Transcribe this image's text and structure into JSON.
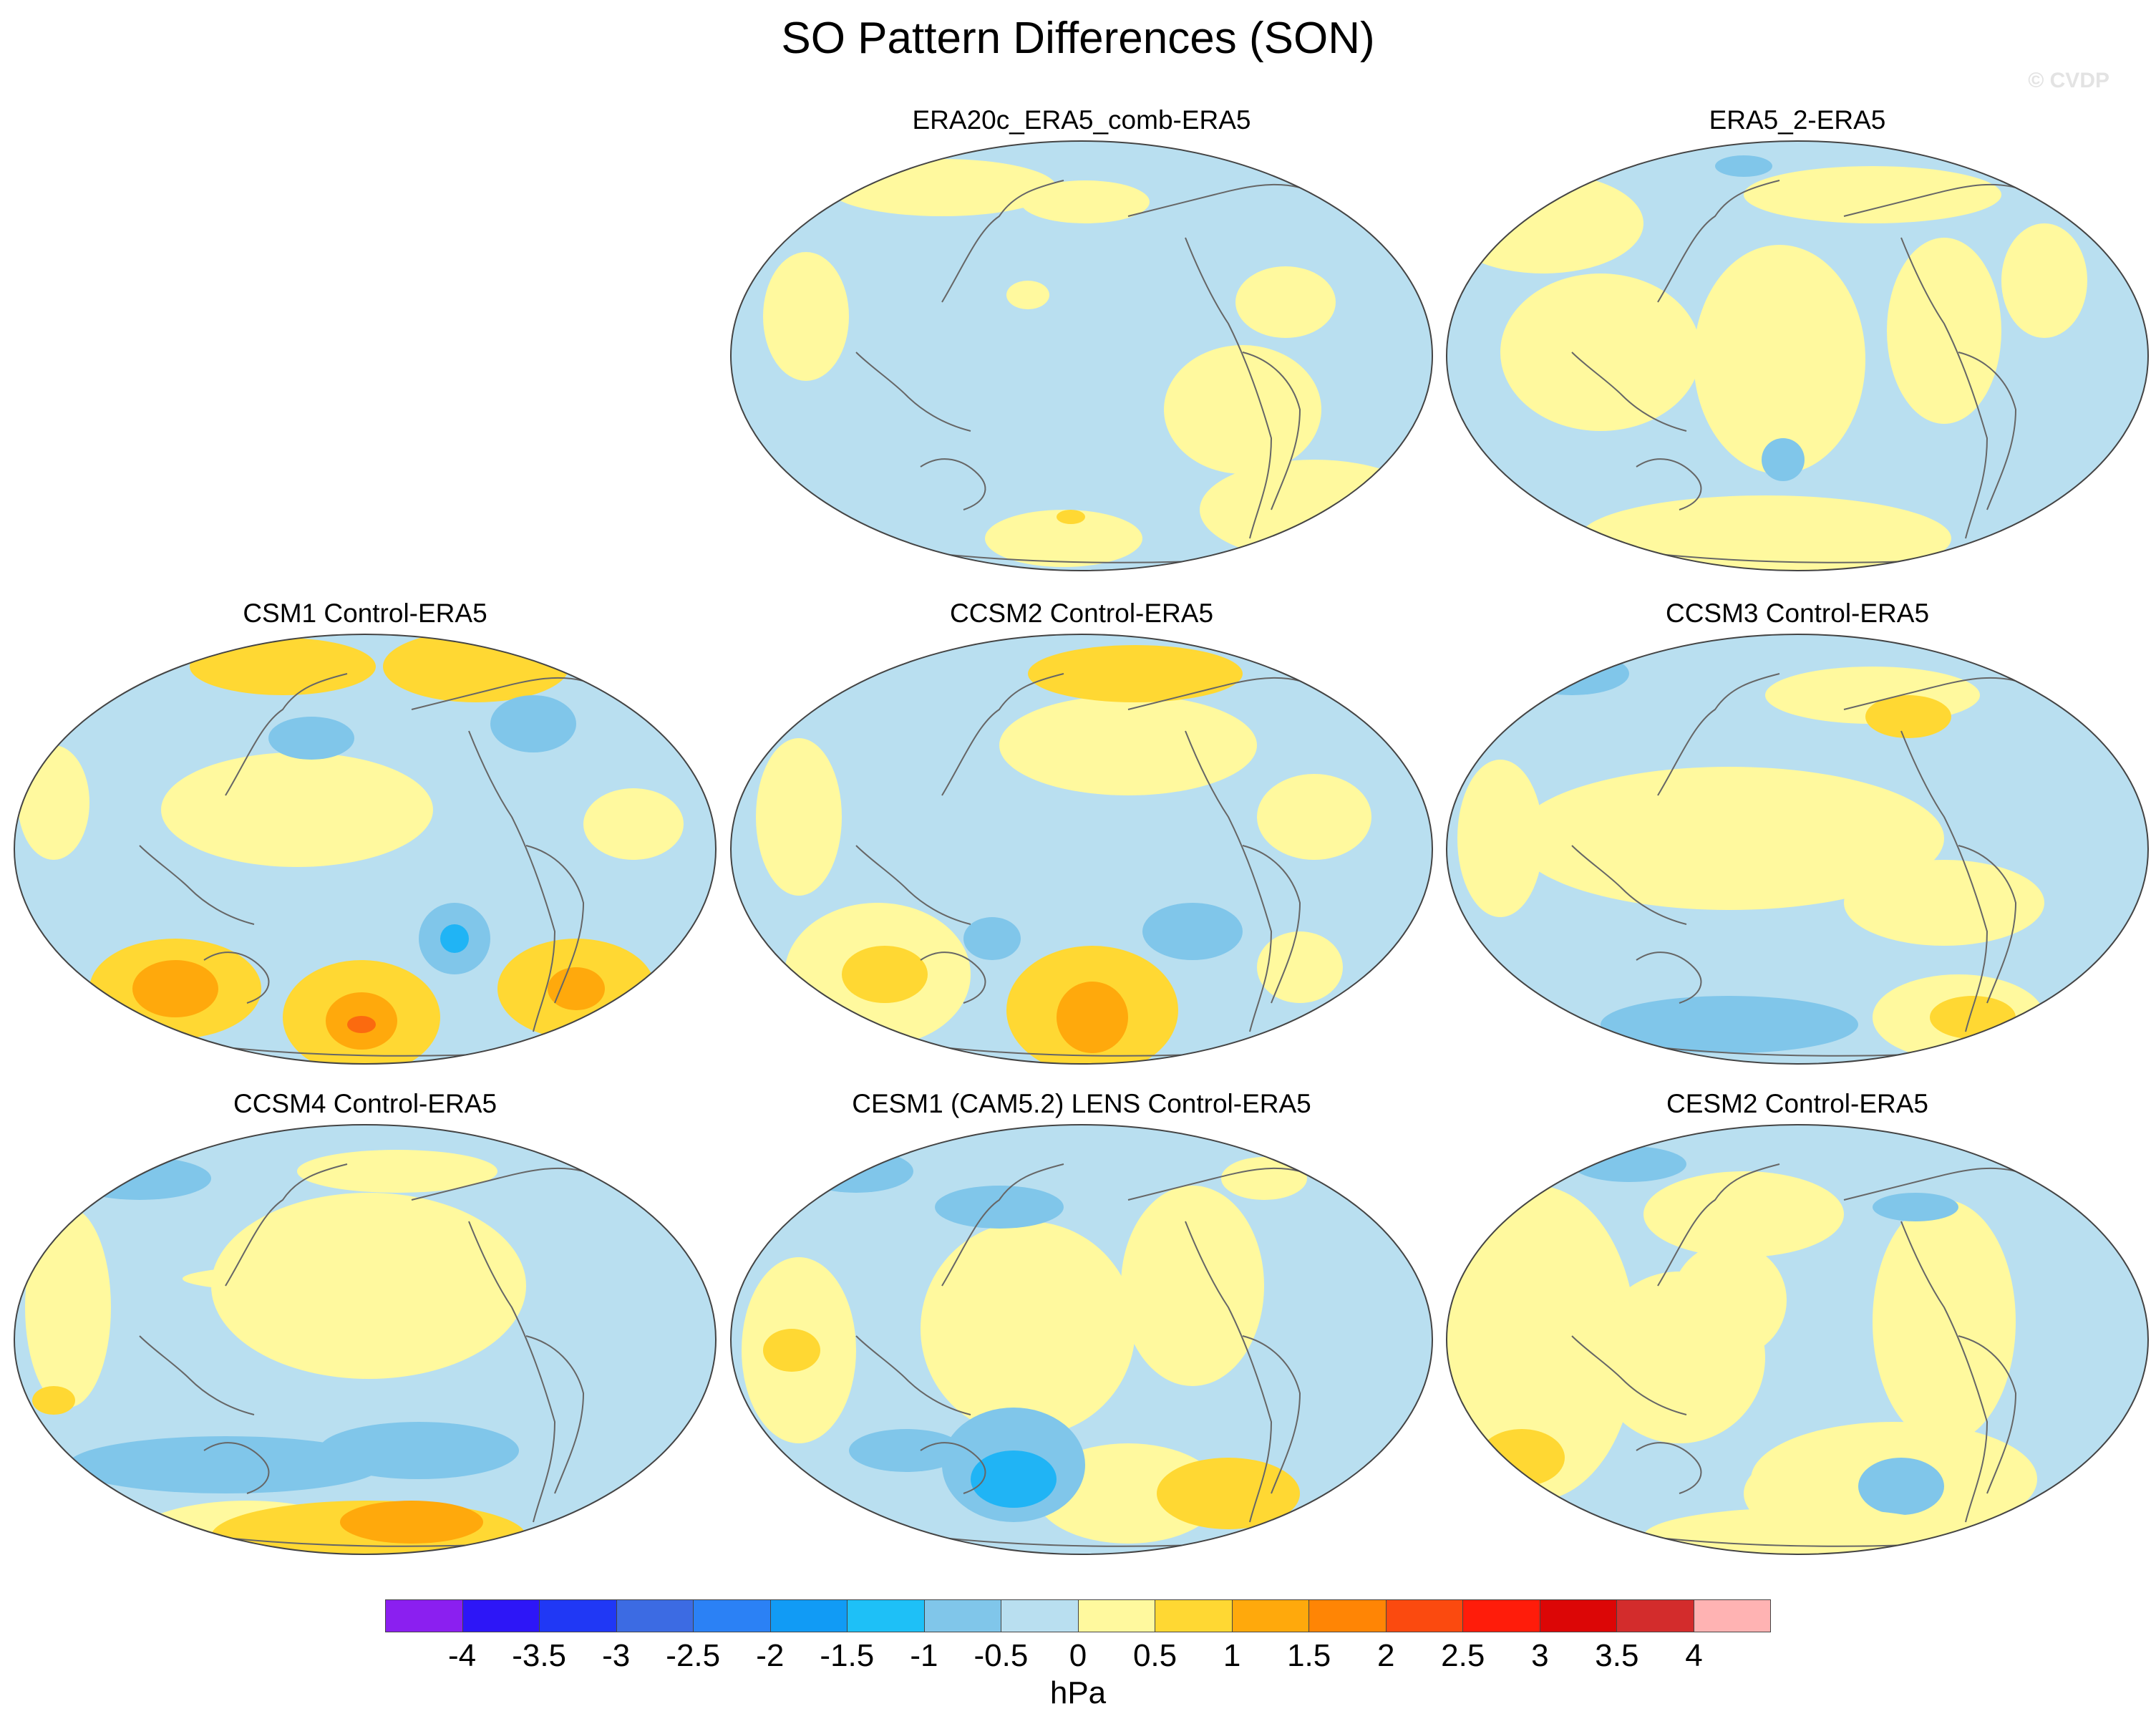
{
  "title": "SO Pattern Differences (SON)",
  "watermark": "© CVDP",
  "colors": {
    "ocean_light_blue": "#b9dff0",
    "light_yellow": "#fff99e",
    "yellow": "#ffd833",
    "orange": "#ffa90c",
    "deep_orange": "#fb6a0f",
    "blue_1": "#80c6ea",
    "blue_2": "#20b4f5",
    "coast": "#666666"
  },
  "panels": [
    {
      "title": "ERA20c_ERA5_comb-ERA5"
    },
    {
      "title": "ERA5_2-ERA5"
    },
    {
      "title": "CSM1 Control-ERA5"
    },
    {
      "title": "CCSM2 Control-ERA5"
    },
    {
      "title": "CCSM3 Control-ERA5"
    },
    {
      "title": "CCSM4 Control-ERA5"
    },
    {
      "title": "CESM1 (CAM5.2) LENS Control-ERA5"
    },
    {
      "title": "CESM2 Control-ERA5"
    }
  ],
  "colorbar": {
    "units": "hPa",
    "labels": [
      "-4",
      "-3.5",
      "-3",
      "-2.5",
      "-2",
      "-1.5",
      "-1",
      "-0.5",
      "0",
      "0.5",
      "1",
      "1.5",
      "2",
      "2.5",
      "3",
      "3.5",
      "4"
    ],
    "colors": [
      "#8b1ff0",
      "#2d16f7",
      "#2038f5",
      "#3c6be3",
      "#2b81f5",
      "#119bf5",
      "#1ec0f7",
      "#80c6ea",
      "#b9dff0",
      "#fff99e",
      "#ffd833",
      "#ffa90c",
      "#ff8505",
      "#fb4a0f",
      "#ff1c0a",
      "#dc0606",
      "#d32c2c",
      "#ffb3b3"
    ]
  }
}
